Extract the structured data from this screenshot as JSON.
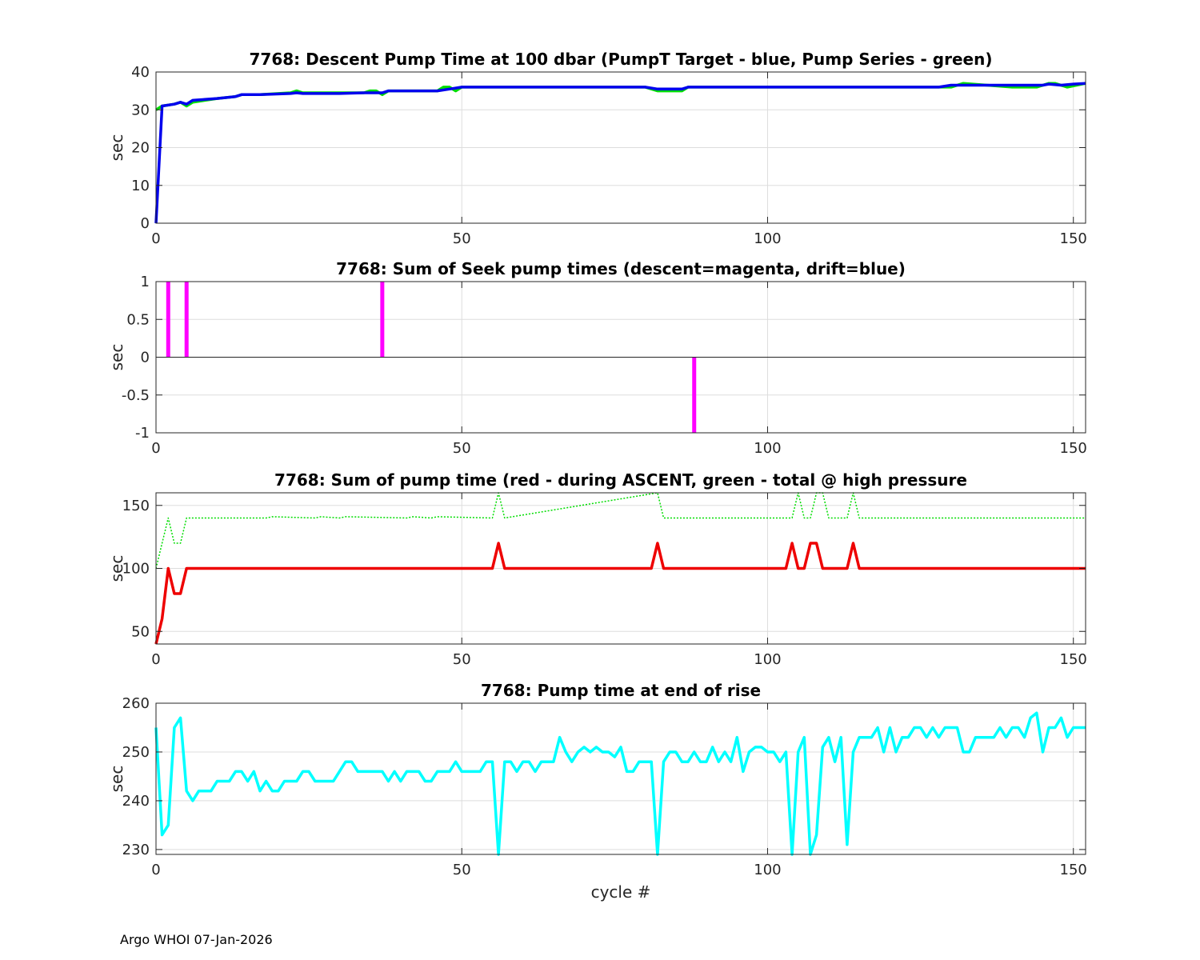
{
  "footer": "Argo WHOI 07-Jan-2026",
  "colors": {
    "green": "#00dd00",
    "blue": "#0000ee",
    "magenta": "#ff00ff",
    "red": "#ee0000",
    "cyan": "#00ffff",
    "grid": "#dddddd",
    "axis": "#262626"
  },
  "chart_data": [
    {
      "type": "line",
      "title": "7768: Descent Pump Time at 100 dbar (PumpT Target - blue, Pump Series - green)",
      "xlabel": "",
      "ylabel": "sec",
      "xlim": [
        0,
        152
      ],
      "ylim": [
        0,
        40
      ],
      "xticks": [
        0,
        50,
        100,
        150
      ],
      "yticks": [
        0,
        10,
        20,
        30,
        40
      ],
      "xtick_labels": [
        "0",
        "50",
        "100",
        "150"
      ],
      "ytick_labels": [
        "0",
        "10",
        "20",
        "30",
        "40"
      ],
      "grid": true,
      "series": [
        {
          "name": "Pump Series",
          "color": "green",
          "style": "solid",
          "x": [
            0,
            1,
            3,
            4,
            5,
            6,
            10,
            13,
            14,
            17,
            22,
            23,
            24,
            30,
            34,
            35,
            36,
            37,
            38,
            40,
            46,
            47,
            48,
            49,
            50,
            80,
            82,
            86,
            87,
            130,
            132,
            140,
            144,
            146,
            147,
            149,
            152
          ],
          "y": [
            30,
            31,
            31.5,
            32,
            31,
            32,
            33,
            33.5,
            34,
            34,
            34.5,
            35,
            34.5,
            34.5,
            34.5,
            35,
            35,
            34,
            35,
            35,
            35,
            36,
            36,
            35,
            36,
            36,
            35,
            35,
            36,
            36,
            37,
            36,
            36,
            37,
            37,
            36,
            37
          ]
        },
        {
          "name": "PumpT Target",
          "color": "blue",
          "style": "solid",
          "x": [
            0,
            1,
            3,
            4,
            5,
            6,
            10,
            13,
            14,
            17,
            22,
            23,
            24,
            30,
            34,
            36,
            37,
            38,
            40,
            46,
            48,
            50,
            80,
            82,
            86,
            87,
            128,
            130,
            132,
            145,
            146,
            148,
            150,
            152
          ],
          "y": [
            0,
            31,
            31.5,
            32,
            31.5,
            32.5,
            33,
            33.5,
            34,
            34,
            34.3,
            34.5,
            34.3,
            34.3,
            34.5,
            34.5,
            34.5,
            35,
            35,
            35,
            35.5,
            36,
            36,
            35.5,
            35.5,
            36,
            36,
            36.5,
            36.5,
            36.5,
            36.8,
            36.5,
            36.8,
            37
          ]
        }
      ]
    },
    {
      "type": "bar",
      "title": "7768: Sum of Seek pump times (descent=magenta, drift=blue)",
      "xlabel": "",
      "ylabel": "sec",
      "xlim": [
        0,
        152
      ],
      "ylim": [
        -1,
        1
      ],
      "xticks": [
        0,
        50,
        100,
        150
      ],
      "yticks": [
        -1,
        -0.5,
        0,
        0.5,
        1
      ],
      "xtick_labels": [
        "0",
        "50",
        "100",
        "150"
      ],
      "ytick_labels": [
        "-1",
        "-0.5",
        "0",
        "0.5",
        "1"
      ],
      "grid": true,
      "series": [
        {
          "name": "descent",
          "color": "magenta",
          "x": [
            2,
            5,
            37,
            88
          ],
          "values": [
            1,
            1,
            1,
            -1
          ]
        }
      ]
    },
    {
      "type": "line",
      "title": "7768: Sum of pump time (red - during ASCENT, green - total @ high pressure",
      "xlabel": "",
      "ylabel": "sec",
      "xlim": [
        0,
        152
      ],
      "ylim": [
        40,
        160
      ],
      "xticks": [
        0,
        50,
        100,
        150
      ],
      "yticks": [
        50,
        100,
        150
      ],
      "xtick_labels": [
        "0",
        "50",
        "100",
        "150"
      ],
      "ytick_labels": [
        "50",
        "100",
        "150"
      ],
      "grid": true,
      "series": [
        {
          "name": "total @ high pressure",
          "color": "green",
          "style": "dotted",
          "x": [
            0,
            1,
            2,
            3,
            4,
            5,
            18,
            19,
            26,
            27,
            30,
            31,
            41,
            42,
            45,
            46,
            55,
            56,
            57,
            82,
            83,
            104,
            105,
            106,
            107,
            108,
            109,
            110,
            113,
            114,
            115,
            152
          ],
          "y": [
            100,
            120,
            140,
            120,
            120,
            140,
            140,
            141,
            140,
            141,
            140,
            141,
            140,
            141,
            140,
            141,
            140,
            160,
            140,
            160,
            140,
            140,
            160,
            140,
            140,
            160,
            160,
            140,
            140,
            160,
            140,
            140
          ]
        },
        {
          "name": "during ASCENT",
          "color": "red",
          "style": "solid",
          "x": [
            0,
            1,
            2,
            3,
            4,
            5,
            55,
            56,
            57,
            81,
            82,
            83,
            103,
            104,
            105,
            106,
            107,
            108,
            109,
            110,
            113,
            114,
            115,
            152
          ],
          "y": [
            40,
            60,
            100,
            80,
            80,
            100,
            100,
            120,
            100,
            100,
            120,
            100,
            100,
            120,
            100,
            100,
            120,
            120,
            100,
            100,
            100,
            120,
            100,
            100
          ]
        }
      ]
    },
    {
      "type": "line",
      "title": "7768: Pump time at end of rise",
      "xlabel": "cycle #",
      "ylabel": "sec",
      "xlim": [
        0,
        152
      ],
      "ylim": [
        229,
        260
      ],
      "xticks": [
        0,
        50,
        100,
        150
      ],
      "yticks": [
        230,
        240,
        250,
        260
      ],
      "xtick_labels": [
        "0",
        "50",
        "100",
        "150"
      ],
      "ytick_labels": [
        "230",
        "240",
        "250",
        "260"
      ],
      "grid": true,
      "series": [
        {
          "name": "end of rise",
          "color": "cyan",
          "style": "solid",
          "x": [
            0,
            1,
            2,
            3,
            4,
            5,
            6,
            7,
            8,
            9,
            10,
            11,
            12,
            13,
            14,
            15,
            16,
            17,
            18,
            19,
            20,
            21,
            22,
            23,
            24,
            25,
            26,
            27,
            28,
            29,
            30,
            31,
            32,
            33,
            34,
            35,
            36,
            37,
            38,
            39,
            40,
            41,
            42,
            43,
            44,
            45,
            46,
            47,
            48,
            49,
            50,
            51,
            52,
            53,
            54,
            55,
            56,
            57,
            58,
            59,
            60,
            61,
            62,
            63,
            64,
            65,
            66,
            67,
            68,
            69,
            70,
            71,
            72,
            73,
            74,
            75,
            76,
            77,
            78,
            79,
            80,
            81,
            82,
            83,
            84,
            85,
            86,
            87,
            88,
            89,
            90,
            91,
            92,
            93,
            94,
            95,
            96,
            97,
            98,
            99,
            100,
            101,
            102,
            103,
            104,
            105,
            106,
            107,
            108,
            109,
            110,
            111,
            112,
            113,
            114,
            115,
            116,
            117,
            118,
            119,
            120,
            121,
            122,
            123,
            124,
            125,
            126,
            127,
            128,
            129,
            130,
            131,
            132,
            133,
            134,
            135,
            136,
            137,
            138,
            139,
            140,
            141,
            142,
            143,
            144,
            145,
            146,
            147,
            148,
            149,
            150,
            151,
            152
          ],
          "y": [
            255,
            233,
            235,
            255,
            257,
            242,
            240,
            242,
            242,
            242,
            244,
            244,
            244,
            246,
            246,
            244,
            246,
            242,
            244,
            242,
            242,
            244,
            244,
            244,
            246,
            246,
            244,
            244,
            244,
            244,
            246,
            248,
            248,
            246,
            246,
            246,
            246,
            246,
            244,
            246,
            244,
            246,
            246,
            246,
            244,
            244,
            246,
            246,
            246,
            248,
            246,
            246,
            246,
            246,
            248,
            248,
            229,
            248,
            248,
            246,
            248,
            248,
            246,
            248,
            248,
            248,
            253,
            250,
            248,
            250,
            251,
            250,
            251,
            250,
            250,
            249,
            251,
            246,
            246,
            248,
            248,
            248,
            229,
            248,
            250,
            250,
            248,
            248,
            250,
            248,
            248,
            251,
            248,
            250,
            248,
            253,
            246,
            250,
            251,
            251,
            250,
            250,
            248,
            250,
            229,
            250,
            253,
            229,
            233,
            251,
            253,
            248,
            253,
            231,
            250,
            253,
            253,
            253,
            255,
            250,
            255,
            250,
            253,
            253,
            255,
            255,
            253,
            255,
            253,
            255,
            255,
            255,
            250,
            250,
            253,
            253,
            253,
            253,
            255,
            253,
            255,
            255,
            253,
            257,
            258,
            250,
            255,
            255,
            257,
            253,
            255,
            255,
            255
          ]
        }
      ]
    }
  ]
}
